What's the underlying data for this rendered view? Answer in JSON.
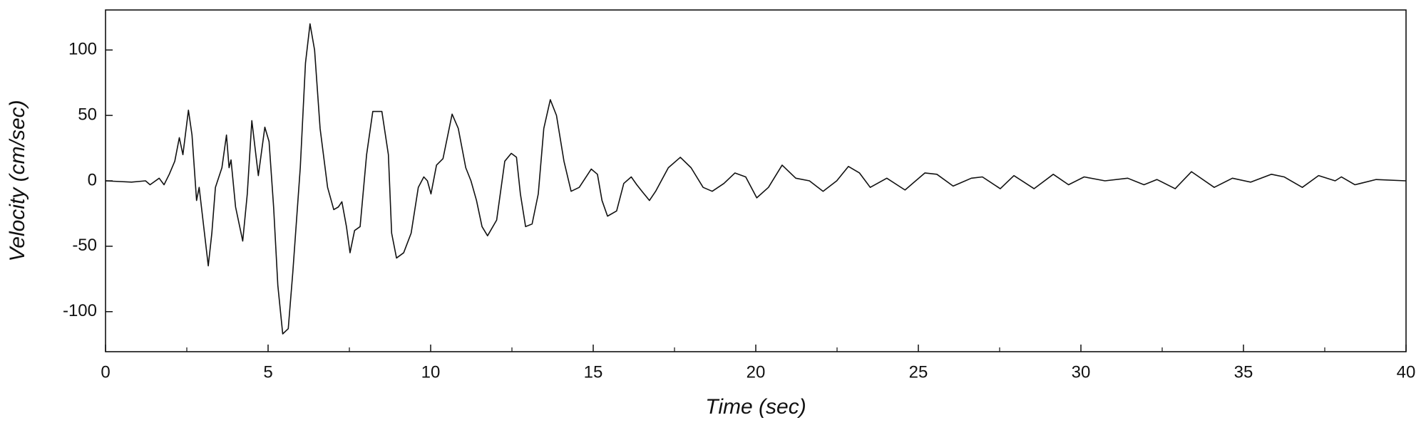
{
  "chart_data": {
    "type": "line",
    "x_label": "Time (sec)",
    "y_label": "Velocity (cm/sec)",
    "xlim": [
      0,
      40
    ],
    "ylim": [
      -130.6,
      130.6
    ],
    "xticks": [
      0,
      5,
      10,
      15,
      20,
      25,
      30,
      35,
      40
    ],
    "xminorticks": [
      2.5,
      7.5,
      12.5,
      17.5,
      22.5,
      27.5,
      32.5,
      37.5
    ],
    "yticks": [
      -100,
      -50,
      0,
      50,
      100
    ],
    "grid": false,
    "series": [
      {
        "color": "#111111",
        "x": [
          0,
          0.8,
          1.23,
          1.37,
          1.65,
          1.8,
          1.96,
          2.13,
          2.27,
          2.38,
          2.55,
          2.66,
          2.8,
          2.88,
          3.02,
          3.16,
          3.27,
          3.38,
          3.58,
          3.72,
          3.8,
          3.86,
          4.0,
          4.22,
          4.36,
          4.5,
          4.7,
          4.9,
          5.03,
          5.17,
          5.3,
          5.45,
          5.62,
          5.76,
          5.99,
          6.15,
          6.29,
          6.43,
          6.6,
          6.83,
          7.02,
          7.16,
          7.27,
          7.41,
          7.52,
          7.66,
          7.83,
          8.03,
          8.22,
          8.5,
          8.7,
          8.8,
          8.95,
          9.17,
          9.4,
          9.62,
          9.79,
          9.9,
          10.01,
          10.18,
          10.38,
          10.66,
          10.85,
          11.08,
          11.24,
          11.41,
          11.58,
          11.75,
          12.03,
          12.28,
          12.48,
          12.64,
          12.76,
          12.92,
          13.12,
          13.31,
          13.48,
          13.68,
          13.87,
          14.1,
          14.32,
          14.57,
          14.94,
          15.13,
          15.27,
          15.44,
          15.72,
          15.94,
          16.17,
          16.34,
          16.5,
          16.73,
          16.92,
          17.31,
          17.68,
          18.01,
          18.38,
          18.66,
          19.02,
          19.36,
          19.69,
          20.03,
          20.39,
          20.81,
          21.23,
          21.65,
          22.07,
          22.49,
          22.85,
          23.19,
          23.52,
          24.03,
          24.59,
          25.2,
          25.57,
          26.07,
          26.63,
          26.97,
          27.52,
          27.94,
          28.56,
          29.15,
          29.62,
          30.1,
          30.74,
          31.44,
          31.94,
          32.34,
          32.9,
          33.4,
          34.1,
          34.66,
          35.22,
          35.86,
          36.25,
          36.81,
          37.31,
          37.82,
          38.01,
          38.43,
          39.08,
          40
        ],
        "values": [
          0,
          -1,
          0,
          -3,
          2,
          -3,
          5,
          15,
          33,
          20,
          54,
          35,
          -15,
          -5,
          -35,
          -65,
          -40,
          -5,
          10,
          35,
          10,
          16,
          -20,
          -46,
          -10,
          46,
          4,
          41,
          30,
          -20,
          -80,
          -117,
          -113,
          -70,
          10,
          90,
          120,
          100,
          40,
          -5,
          -22,
          -20,
          -16,
          -35,
          -55,
          -38,
          -35,
          20,
          53,
          53,
          20,
          -40,
          -59,
          -55,
          -40,
          -5,
          3,
          0,
          -10,
          12,
          17,
          51,
          40,
          10,
          0,
          -15,
          -35,
          -42,
          -30,
          15,
          21,
          18,
          -10,
          -35,
          -33,
          -10,
          40,
          62,
          50,
          15,
          -8,
          -5,
          9,
          5,
          -15,
          -27,
          -23,
          -2,
          3,
          -3,
          -8,
          -15,
          -8,
          10,
          18,
          10,
          -5,
          -8,
          -2,
          6,
          3,
          -13,
          -5,
          12,
          2,
          0,
          -8,
          0,
          11,
          6,
          -5,
          2,
          -7,
          6,
          5,
          -4,
          2,
          3,
          -6,
          4,
          -6,
          5,
          -3,
          3,
          0,
          2,
          -3,
          1,
          -6,
          7,
          -5,
          2,
          -1,
          5,
          3,
          -5,
          4,
          0,
          3,
          -3,
          1,
          0
        ]
      }
    ]
  }
}
